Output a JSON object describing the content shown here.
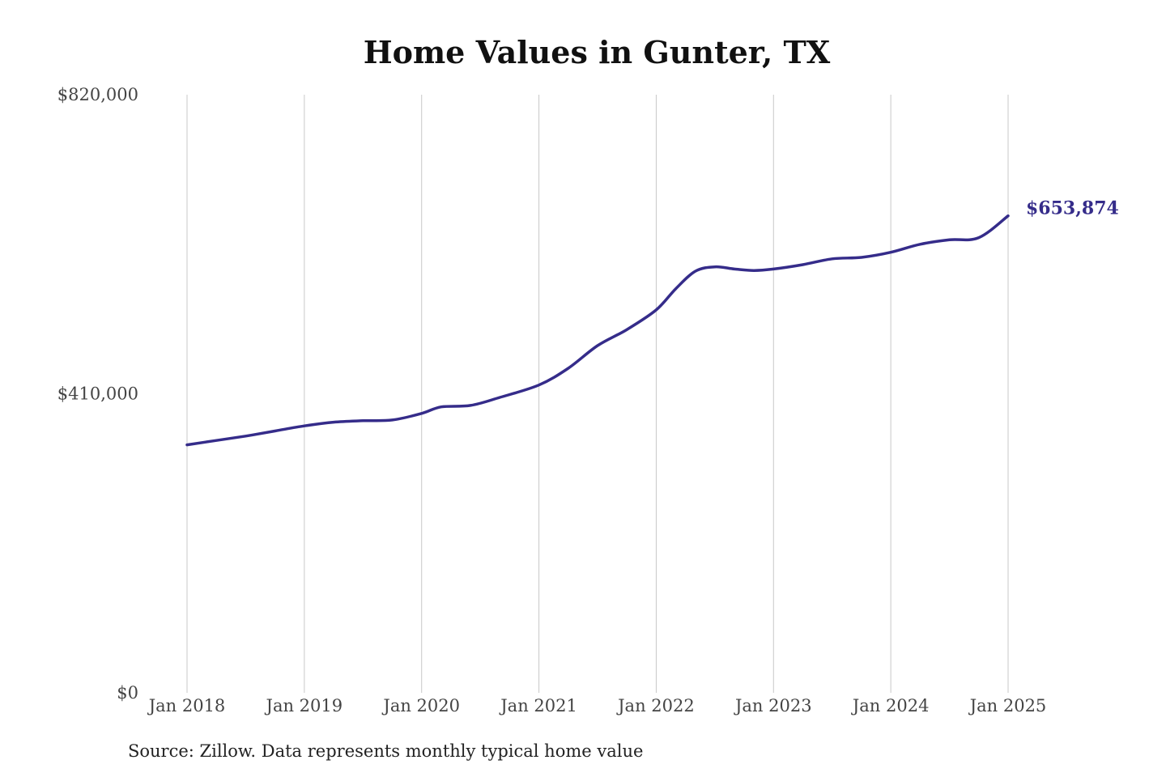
{
  "chart_data": {
    "type": "line",
    "title": "Home Values in Gunter, TX",
    "source_note": "Source: Zillow. Data represents monthly typical home value",
    "xlabel": "",
    "ylabel": "",
    "ylim": [
      0,
      820000
    ],
    "y_ticks": [
      {
        "value": 0,
        "label": "$0"
      },
      {
        "value": 410000,
        "label": "$410,000"
      },
      {
        "value": 820000,
        "label": "$820,000"
      }
    ],
    "x_ticks": [
      {
        "value": "2018-01",
        "label": "Jan 2018"
      },
      {
        "value": "2019-01",
        "label": "Jan 2019"
      },
      {
        "value": "2020-01",
        "label": "Jan 2020"
      },
      {
        "value": "2021-01",
        "label": "Jan 2021"
      },
      {
        "value": "2022-01",
        "label": "Jan 2022"
      },
      {
        "value": "2023-01",
        "label": "Jan 2023"
      },
      {
        "value": "2024-01",
        "label": "Jan 2024"
      },
      {
        "value": "2025-01",
        "label": "Jan 2025"
      }
    ],
    "grid": {
      "vertical": true,
      "horizontal": false
    },
    "end_label": "$653,874",
    "colors": {
      "line": "#352c8a",
      "grid": "#c8c8c8",
      "end_label": "#352c8a"
    },
    "series": [
      {
        "values": [
          {
            "x": "2018-01",
            "y": 340000
          },
          {
            "x": "2018-04",
            "y": 346000
          },
          {
            "x": "2018-07",
            "y": 352000
          },
          {
            "x": "2018-10",
            "y": 359000
          },
          {
            "x": "2019-01",
            "y": 366000
          },
          {
            "x": "2019-04",
            "y": 371000
          },
          {
            "x": "2019-07",
            "y": 373000
          },
          {
            "x": "2019-10",
            "y": 374000
          },
          {
            "x": "2020-01",
            "y": 383000
          },
          {
            "x": "2020-03",
            "y": 392000
          },
          {
            "x": "2020-06",
            "y": 394000
          },
          {
            "x": "2020-09",
            "y": 405000
          },
          {
            "x": "2021-01",
            "y": 422000
          },
          {
            "x": "2021-04",
            "y": 445000
          },
          {
            "x": "2021-07",
            "y": 476000
          },
          {
            "x": "2021-10",
            "y": 498000
          },
          {
            "x": "2022-01",
            "y": 525000
          },
          {
            "x": "2022-03",
            "y": 554000
          },
          {
            "x": "2022-05",
            "y": 578000
          },
          {
            "x": "2022-07",
            "y": 584000
          },
          {
            "x": "2022-09",
            "y": 581000
          },
          {
            "x": "2022-11",
            "y": 579000
          },
          {
            "x": "2023-01",
            "y": 581000
          },
          {
            "x": "2023-04",
            "y": 587000
          },
          {
            "x": "2023-07",
            "y": 595000
          },
          {
            "x": "2023-10",
            "y": 597000
          },
          {
            "x": "2024-01",
            "y": 604000
          },
          {
            "x": "2024-04",
            "y": 615000
          },
          {
            "x": "2024-07",
            "y": 621000
          },
          {
            "x": "2024-10",
            "y": 624000
          },
          {
            "x": "2025-01",
            "y": 653874
          }
        ]
      }
    ]
  }
}
